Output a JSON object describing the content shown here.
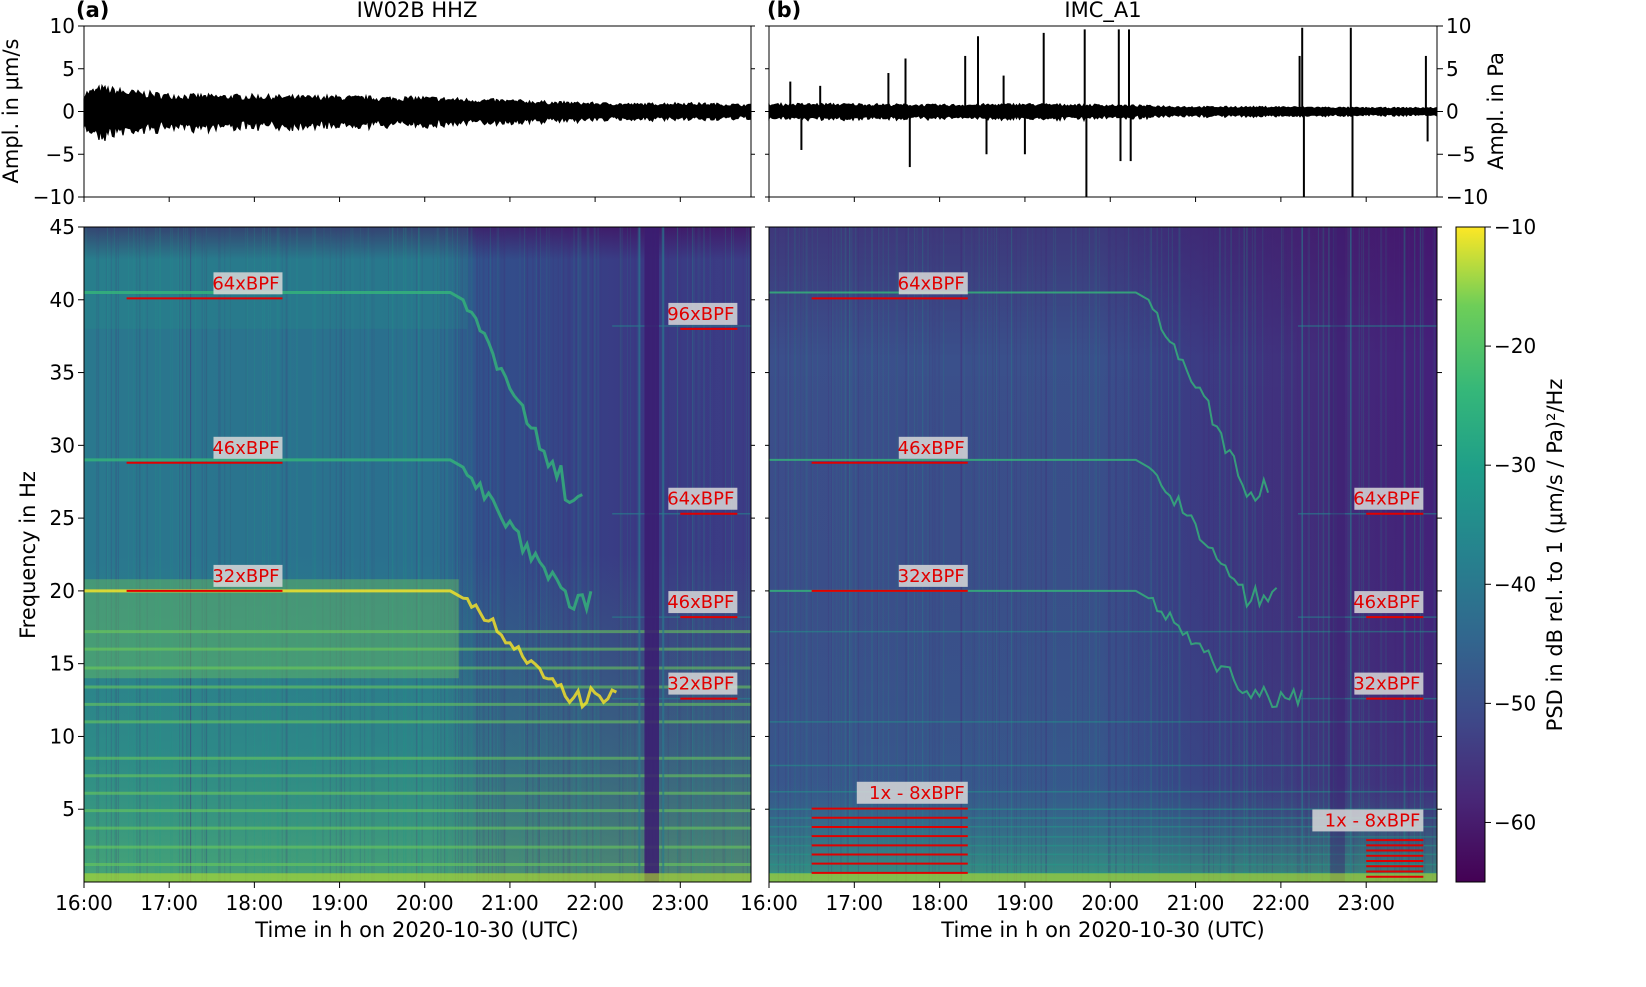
{
  "figure": {
    "panel_letters": [
      "(a)",
      "(b)"
    ],
    "x_tick_labels": [
      "16:00",
      "17:00",
      "18:00",
      "19:00",
      "20:00",
      "21:00",
      "22:00",
      "23:00"
    ],
    "xlabel": "Time in h on 2020-10-30 (UTC)",
    "colorbar_label": "PSD in dB rel. to 1 (μm/s / Pa)²/Hz"
  },
  "chart_data": [
    {
      "panel": "a-top",
      "type": "line",
      "title": "IW02B HHZ",
      "ylabel": "Ampl. in μm/s",
      "ylim": [
        -10,
        10
      ],
      "yticks": [
        10,
        5,
        0,
        -5,
        -10
      ],
      "y_tick_labels": [
        "10",
        "5",
        "0",
        "−5",
        "−10"
      ],
      "xlim": [
        16.0,
        23.83
      ],
      "series": [
        {
          "color": "#000000",
          "envelope": [
            [
              16.0,
              2.0
            ],
            [
              16.2,
              2.6
            ],
            [
              16.5,
              2.2
            ],
            [
              17.0,
              1.8
            ],
            [
              17.5,
              1.7
            ],
            [
              18.0,
              1.7
            ],
            [
              18.5,
              1.6
            ],
            [
              19.0,
              1.6
            ],
            [
              19.5,
              1.5
            ],
            [
              20.0,
              1.5
            ],
            [
              20.5,
              1.3
            ],
            [
              21.0,
              1.2
            ],
            [
              21.5,
              1.0
            ],
            [
              22.0,
              0.9
            ],
            [
              22.5,
              0.8
            ],
            [
              23.0,
              0.9
            ],
            [
              23.5,
              0.8
            ],
            [
              23.83,
              0.7
            ]
          ]
        }
      ]
    },
    {
      "panel": "b-top",
      "type": "line",
      "title": "IMC_A1",
      "ylabel": "Ampl. in Pa",
      "ylim": [
        -10,
        10
      ],
      "yticks": [
        10,
        5,
        0,
        -5,
        -10
      ],
      "y_tick_labels": [
        "10",
        "5",
        "0",
        "−5",
        "−10"
      ],
      "xlim": [
        16.0,
        23.83
      ],
      "series": [
        {
          "color": "#000000",
          "envelope": [
            [
              16.0,
              0.8
            ],
            [
              17.0,
              0.8
            ],
            [
              18.0,
              0.7
            ],
            [
              19.0,
              0.8
            ],
            [
              20.0,
              0.7
            ],
            [
              21.0,
              0.5
            ],
            [
              22.0,
              0.5
            ],
            [
              23.0,
              0.4
            ],
            [
              23.83,
              0.4
            ]
          ],
          "spikes": [
            [
              16.25,
              3.5
            ],
            [
              16.38,
              -4.5
            ],
            [
              16.6,
              3.0
            ],
            [
              17.4,
              4.5
            ],
            [
              17.6,
              6.2
            ],
            [
              17.65,
              -6.5
            ],
            [
              18.3,
              6.5
            ],
            [
              18.45,
              8.8
            ],
            [
              18.55,
              -5.0
            ],
            [
              18.75,
              4.2
            ],
            [
              19.0,
              -5.0
            ],
            [
              19.22,
              9.2
            ],
            [
              19.7,
              9.6
            ],
            [
              19.72,
              -10.0
            ],
            [
              20.1,
              9.6
            ],
            [
              20.12,
              -5.8
            ],
            [
              20.22,
              9.6
            ],
            [
              20.24,
              -5.8
            ],
            [
              22.22,
              6.5
            ],
            [
              22.25,
              9.8
            ],
            [
              22.27,
              -10.0
            ],
            [
              22.82,
              9.8
            ],
            [
              22.84,
              -10.0
            ],
            [
              23.7,
              6.5
            ],
            [
              23.72,
              -3.5
            ]
          ]
        }
      ]
    },
    {
      "panel": "a-bottom",
      "type": "heatmap",
      "ylabel": "Frequency in Hz",
      "ylim": [
        0,
        45
      ],
      "xlim": [
        16.0,
        23.83
      ],
      "yticks": [
        5,
        10,
        15,
        20,
        25,
        30,
        35,
        40,
        45
      ],
      "y_tick_labels": [
        "5",
        "10",
        "15",
        "20",
        "25",
        "30",
        "35",
        "40",
        "45"
      ],
      "colormap": "viridis",
      "annotations": [
        {
          "text": "64xBPF",
          "x0": 16.5,
          "x1": 18.33,
          "freq": 40.1
        },
        {
          "text": "46xBPF",
          "x0": 16.5,
          "x1": 18.33,
          "freq": 28.8
        },
        {
          "text": "32xBPF",
          "x0": 16.5,
          "x1": 18.33,
          "freq": 20.0
        },
        {
          "text": "96xBPF",
          "x0": 23.0,
          "x1": 23.67,
          "freq": 38.0
        },
        {
          "text": "64xBPF",
          "x0": 23.0,
          "x1": 23.67,
          "freq": 25.3
        },
        {
          "text": "46xBPF",
          "x0": 23.0,
          "x1": 23.67,
          "freq": 18.2
        },
        {
          "text": "32xBPF",
          "x0": 23.0,
          "x1": 23.67,
          "freq": 12.6
        }
      ]
    },
    {
      "panel": "b-bottom",
      "type": "heatmap",
      "ylim": [
        0,
        45
      ],
      "xlim": [
        16.0,
        23.83
      ],
      "colormap": "viridis",
      "colorbar": {
        "range": [
          -65,
          -10
        ],
        "ticks": [
          -10,
          -20,
          -30,
          -40,
          -50,
          -60
        ],
        "tick_labels": [
          "−10",
          "−20",
          "−30",
          "−40",
          "−50",
          "−60"
        ]
      },
      "annotations": [
        {
          "text": "64xBPF",
          "x0": 16.5,
          "x1": 18.33,
          "freq": 40.1
        },
        {
          "text": "46xBPF",
          "x0": 16.5,
          "x1": 18.33,
          "freq": 28.8
        },
        {
          "text": "32xBPF",
          "x0": 16.5,
          "x1": 18.33,
          "freq": 20.0
        },
        {
          "text": "1x - 8xBPF",
          "x0": 16.5,
          "x1": 18.33,
          "freq": 5.1,
          "multi": [
            0.63,
            1.26,
            1.89,
            2.52,
            3.15,
            3.78,
            4.41,
            5.04
          ]
        },
        {
          "text": "64xBPF",
          "x0": 23.0,
          "x1": 23.67,
          "freq": 25.3
        },
        {
          "text": "46xBPF",
          "x0": 23.0,
          "x1": 23.67,
          "freq": 18.2
        },
        {
          "text": "32xBPF",
          "x0": 23.0,
          "x1": 23.67,
          "freq": 12.6
        },
        {
          "text": "1x - 8xBPF",
          "x0": 23.0,
          "x1": 23.67,
          "freq": 3.2,
          "multi": [
            0.36,
            0.72,
            1.08,
            1.44,
            1.8,
            2.16,
            2.52,
            2.88
          ]
        }
      ]
    }
  ]
}
